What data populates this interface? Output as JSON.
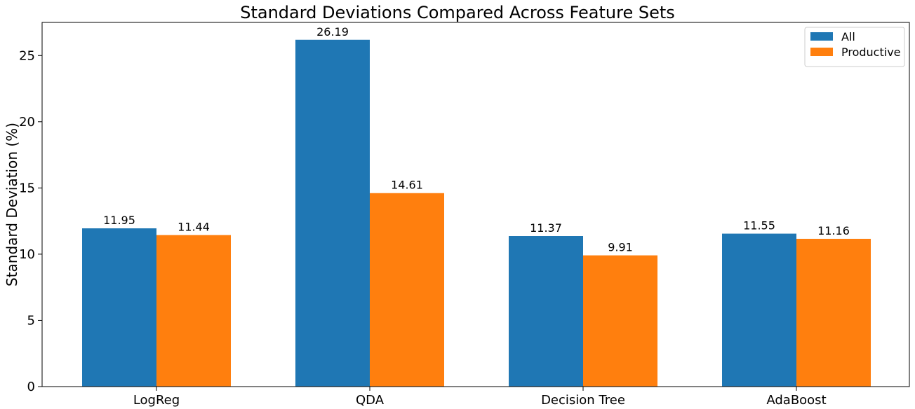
{
  "chart_data": {
    "type": "bar",
    "title": "Standard Deviations Compared Across Feature Sets",
    "xlabel": "",
    "ylabel": "Standard Deviation (%)",
    "categories": [
      "LogReg",
      "QDA",
      "Decision Tree",
      "AdaBoost"
    ],
    "series": [
      {
        "name": "All",
        "values": [
          11.95,
          26.19,
          11.37,
          11.55
        ],
        "color": "#1f77b4"
      },
      {
        "name": "Productive",
        "values": [
          11.44,
          14.61,
          9.91,
          11.16
        ],
        "color": "#ff7f0e"
      }
    ],
    "data_labels": [
      [
        "11.95",
        "26.19",
        "11.37",
        "11.55"
      ],
      [
        "11.44",
        "14.61",
        "9.91",
        "11.16"
      ]
    ],
    "ylim": [
      0,
      27.5
    ],
    "yticks": [
      0,
      5,
      10,
      15,
      20,
      25
    ],
    "grid": false,
    "legend_position": "top-right"
  }
}
